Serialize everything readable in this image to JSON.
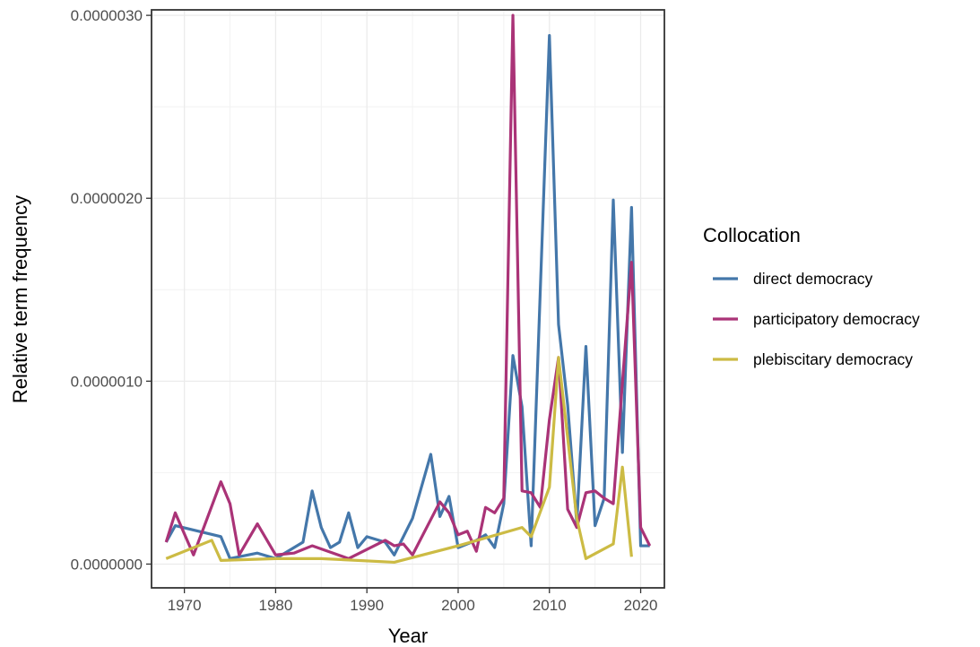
{
  "chart_data": {
    "type": "line",
    "xlabel": "Year",
    "ylabel": "Relative term frequency",
    "xlim": [
      1966.4,
      2022.6
    ],
    "ylim": [
      -1.3e-07,
      3.03e-06
    ],
    "xticks": [
      1970,
      1980,
      1990,
      2000,
      2010,
      2020
    ],
    "yticks": [
      0,
      1e-06,
      2e-06,
      3e-06
    ],
    "x_tick_labels": [
      "1970",
      "1980",
      "1990",
      "2000",
      "2010",
      "2020"
    ],
    "y_tick_labels": [
      "0.0000000",
      "0.0000010",
      "0.0000020",
      "0.0000030"
    ],
    "grid": true,
    "legend": {
      "title": "Collocation",
      "position": "right"
    },
    "series": [
      {
        "name": "direct democracy",
        "color": "#4477aa",
        "x": [
          1968,
          1969,
          1974,
          1975,
          1978,
          1980,
          1983,
          1984,
          1985,
          1986,
          1987,
          1988,
          1989,
          1990,
          1992,
          1993,
          1995,
          1997,
          1998,
          1999,
          2000,
          2002,
          2003,
          2004,
          2005,
          2006,
          2007,
          2008,
          2010,
          2011,
          2012,
          2013,
          2014,
          2015,
          2016,
          2017,
          2018,
          2019,
          2020,
          2021
        ],
        "y": [
          1.2e-07,
          2.1e-07,
          1.5e-07,
          3e-08,
          6e-08,
          3e-08,
          1.2e-07,
          4e-07,
          2e-07,
          9e-08,
          1.2e-07,
          2.8e-07,
          9e-08,
          1.5e-07,
          1.2e-07,
          5e-08,
          2.5e-07,
          6e-07,
          2.6e-07,
          3.7e-07,
          9e-08,
          1.3e-07,
          1.6e-07,
          9e-08,
          3.3e-07,
          1.14e-06,
          8.6e-07,
          1e-07,
          2.89e-06,
          1.31e-06,
          8.7e-07,
          2.2e-07,
          1.19e-06,
          2.1e-07,
          3.6e-07,
          1.99e-06,
          6.1e-07,
          1.95e-06,
          1e-07,
          1e-07
        ]
      },
      {
        "name": "participatory democracy",
        "color": "#aa3377",
        "x": [
          1968,
          1969,
          1971,
          1974,
          1975,
          1976,
          1978,
          1980,
          1982,
          1984,
          1988,
          1992,
          1993,
          1994,
          1995,
          1998,
          1999,
          2000,
          2001,
          2002,
          2003,
          2004,
          2005,
          2006,
          2007,
          2008,
          2009,
          2010,
          2011,
          2012,
          2013,
          2014,
          2015,
          2016,
          2017,
          2019,
          2020,
          2021
        ],
        "y": [
          1.2e-07,
          2.8e-07,
          5e-08,
          4.5e-07,
          3.3e-07,
          5e-08,
          2.2e-07,
          5e-08,
          6e-08,
          1e-07,
          3e-08,
          1.3e-07,
          1e-07,
          1.1e-07,
          5e-08,
          3.4e-07,
          2.8e-07,
          1.6e-07,
          1.8e-07,
          7e-08,
          3.1e-07,
          2.8e-07,
          3.6e-07,
          3e-06,
          4e-07,
          3.9e-07,
          3.1e-07,
          7.9e-07,
          1.13e-06,
          3e-07,
          2e-07,
          3.9e-07,
          4e-07,
          3.6e-07,
          3.3e-07,
          1.65e-06,
          2e-07,
          1e-07
        ]
      },
      {
        "name": "plebiscitary democracy",
        "color": "#ccbb44",
        "x": [
          1968,
          1973,
          1974,
          1980,
          1985,
          1993,
          2000,
          2007,
          2008,
          2010,
          2011,
          2013,
          2014,
          2017,
          2018,
          2019
        ],
        "y": [
          3e-08,
          1.3e-07,
          2e-08,
          3e-08,
          3e-08,
          1e-08,
          1e-07,
          2e-07,
          1.5e-07,
          4.2e-07,
          1.13e-06,
          2.5e-07,
          3e-08,
          1.1e-07,
          5.3e-07,
          4e-08
        ]
      }
    ]
  }
}
